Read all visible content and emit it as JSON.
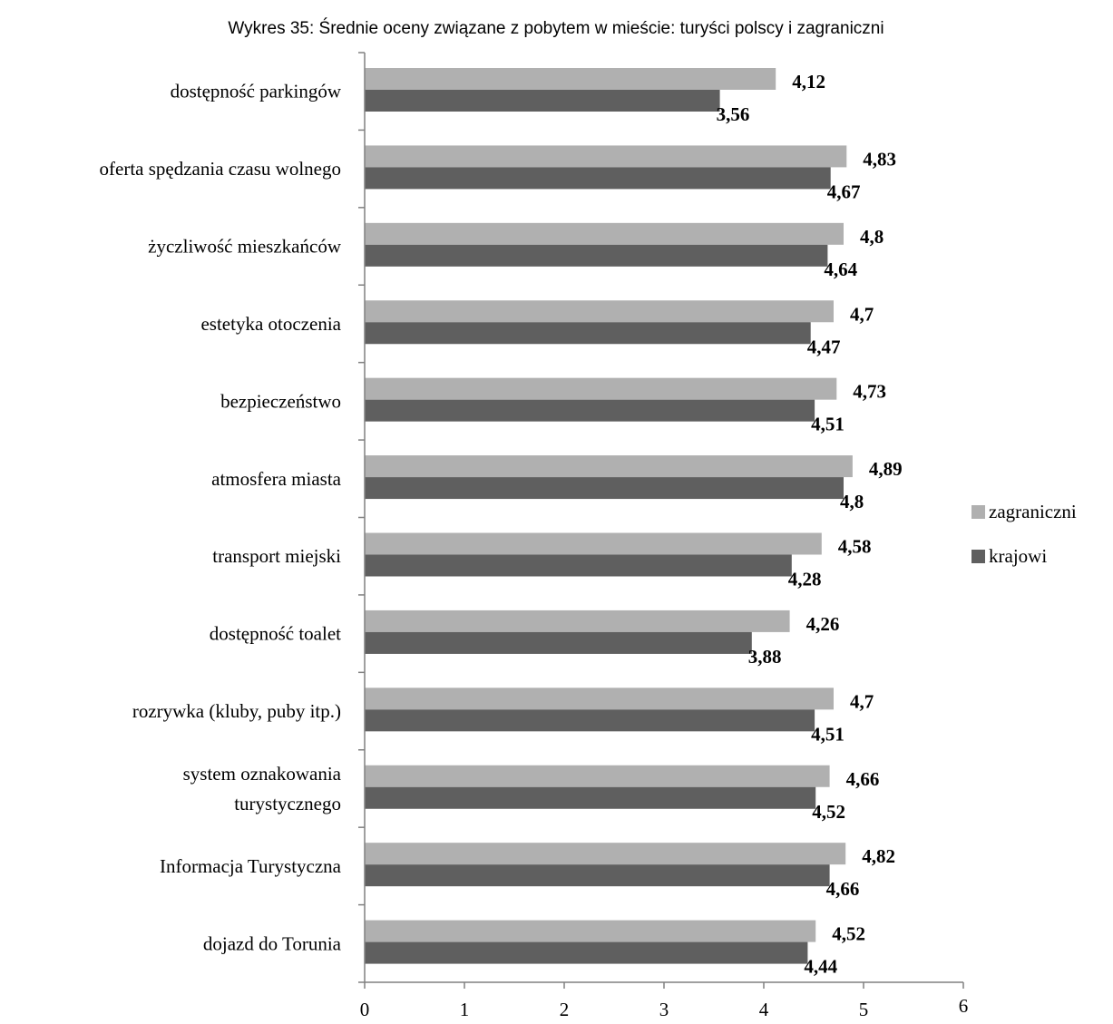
{
  "chart_data": {
    "type": "bar",
    "orientation": "horizontal",
    "title": "Wykres 35: Średnie oceny związane z pobytem w mieście: turyści polscy i zagraniczni",
    "categories": [
      [
        "dostępność parkingów"
      ],
      [
        "oferta spędzania czasu wolnego"
      ],
      [
        "życzliwość mieszkańców"
      ],
      [
        "estetyka otoczenia"
      ],
      [
        "bezpieczeństwo"
      ],
      [
        "atmosfera miasta"
      ],
      [
        "transport miejski"
      ],
      [
        "dostępność toalet"
      ],
      [
        "rozrywka (kluby, puby itp.)"
      ],
      [
        "system oznakowania",
        "turystycznego"
      ],
      [
        "Informacja Turystyczna"
      ],
      [
        "dojazd do Torunia"
      ]
    ],
    "series": [
      {
        "name": "zagraniczni",
        "color": "#b0b0b0",
        "values": [
          4.12,
          4.83,
          4.8,
          4.7,
          4.73,
          4.89,
          4.58,
          4.26,
          4.7,
          4.66,
          4.82,
          4.52
        ],
        "labels": [
          "4,12",
          "4,83",
          "4,8",
          "4,7",
          "4,73",
          "4,89",
          "4,58",
          "4,26",
          "4,7",
          "4,66",
          "4,82",
          "4,52"
        ]
      },
      {
        "name": "krajowi",
        "color": "#5f5f5f",
        "values": [
          3.56,
          4.67,
          4.64,
          4.47,
          4.51,
          4.8,
          4.28,
          3.88,
          4.51,
          4.52,
          4.66,
          4.44
        ],
        "labels": [
          "3,56",
          "4,67",
          "4,64",
          "4,47",
          "4,51",
          "4,8",
          "4,28",
          "3,88",
          "4,51",
          "4,52",
          "4,66",
          "4,44"
        ]
      }
    ],
    "xlim": [
      0,
      6
    ],
    "x_ticks": [
      "0",
      "1",
      "2",
      "3",
      "4",
      "5",
      "6"
    ],
    "grid": false,
    "legend_position": "right"
  }
}
